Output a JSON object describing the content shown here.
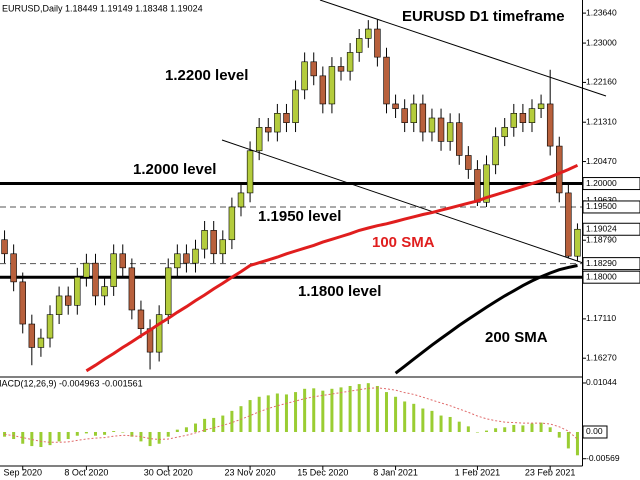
{
  "chart_data": [
    {
      "type": "candlestick",
      "title": "EURUSD D1 timeframe",
      "header": "EURUSD,Daily  1.18449 1.19149 1.18348 1.19024",
      "categories": [
        null,
        null,
        "Sep 2020",
        null,
        null,
        null,
        null,
        null,
        null,
        "8 Oct 2020",
        null,
        null,
        null,
        null,
        null,
        null,
        null,
        null,
        "30 Oct 2020",
        null,
        null,
        null,
        null,
        null,
        null,
        null,
        null,
        "23 Nov 2020",
        null,
        null,
        null,
        null,
        null,
        null,
        null,
        "15 Dec 2020",
        null,
        null,
        null,
        null,
        null,
        null,
        null,
        "8 Jan 2021",
        null,
        null,
        null,
        null,
        null,
        null,
        null,
        null,
        "1 Feb 2021",
        null,
        null,
        null,
        null,
        null,
        null,
        null,
        "23 Feb 2021",
        null,
        null,
        null
      ],
      "open": [
        1.188,
        1.185,
        1.179,
        1.17,
        1.165,
        1.167,
        1.172,
        1.176,
        1.174,
        1.18,
        1.183,
        1.176,
        1.178,
        1.185,
        1.182,
        1.173,
        1.169,
        1.164,
        1.172,
        1.182,
        1.185,
        1.183,
        1.186,
        1.19,
        1.185,
        1.188,
        1.195,
        1.198,
        1.207,
        1.212,
        1.211,
        1.215,
        1.213,
        1.22,
        1.226,
        1.223,
        1.217,
        1.225,
        1.224,
        1.228,
        1.231,
        1.233,
        1.227,
        1.217,
        1.216,
        1.213,
        1.217,
        1.211,
        1.214,
        1.209,
        1.213,
        1.206,
        1.203,
        1.196,
        1.204,
        1.21,
        1.212,
        1.215,
        1.213,
        1.216,
        1.217,
        1.208,
        1.198,
        1.18449
      ],
      "high": [
        1.19,
        1.187,
        1.181,
        1.172,
        1.169,
        1.174,
        1.178,
        1.178,
        1.182,
        1.185,
        1.185,
        1.18,
        1.187,
        1.187,
        1.184,
        1.175,
        1.171,
        1.174,
        1.184,
        1.187,
        1.187,
        1.188,
        1.192,
        1.192,
        1.19,
        1.197,
        1.2,
        1.209,
        1.214,
        1.214,
        1.217,
        1.217,
        1.222,
        1.228,
        1.228,
        1.225,
        1.227,
        1.227,
        1.23,
        1.233,
        1.2349,
        1.235,
        1.229,
        1.219,
        1.218,
        1.219,
        1.219,
        1.216,
        1.216,
        1.215,
        1.215,
        1.208,
        1.205,
        1.206,
        1.212,
        1.214,
        1.217,
        1.217,
        1.218,
        1.219,
        1.2243,
        1.21,
        1.2,
        1.19149
      ],
      "low": [
        1.183,
        1.177,
        1.168,
        1.1612,
        1.163,
        1.165,
        1.17,
        1.172,
        1.172,
        1.178,
        1.174,
        1.174,
        1.176,
        1.18,
        1.171,
        1.167,
        1.1603,
        1.162,
        1.17,
        1.18,
        1.181,
        1.181,
        1.184,
        1.183,
        1.183,
        1.186,
        1.193,
        1.196,
        1.205,
        1.209,
        1.209,
        1.211,
        1.211,
        1.218,
        1.221,
        1.215,
        1.215,
        1.222,
        1.222,
        1.226,
        1.229,
        1.225,
        1.215,
        1.214,
        1.211,
        1.211,
        1.209,
        1.209,
        1.207,
        1.207,
        1.204,
        1.201,
        1.1952,
        1.195,
        1.202,
        1.208,
        1.21,
        1.211,
        1.211,
        1.214,
        1.206,
        1.196,
        1.184,
        1.18348
      ],
      "close": [
        1.185,
        1.179,
        1.17,
        1.165,
        1.167,
        1.172,
        1.176,
        1.174,
        1.18,
        1.183,
        1.176,
        1.178,
        1.185,
        1.182,
        1.173,
        1.169,
        1.164,
        1.172,
        1.182,
        1.185,
        1.183,
        1.186,
        1.19,
        1.185,
        1.188,
        1.195,
        1.198,
        1.207,
        1.212,
        1.211,
        1.215,
        1.213,
        1.22,
        1.226,
        1.223,
        1.217,
        1.225,
        1.224,
        1.228,
        1.231,
        1.233,
        1.227,
        1.217,
        1.216,
        1.213,
        1.217,
        1.211,
        1.214,
        1.209,
        1.213,
        1.206,
        1.203,
        1.196,
        1.204,
        1.21,
        1.212,
        1.215,
        1.213,
        1.216,
        1.217,
        1.208,
        1.198,
        1.1845,
        1.19024
      ],
      "up_color": "#b4cc3c",
      "down_color": "#b8603c",
      "series": [
        {
          "name": "100 SMA",
          "color": "#e01e1e",
          "values": [
            null,
            null,
            null,
            null,
            null,
            null,
            null,
            null,
            null,
            1.16,
            1.1612,
            1.1625,
            1.1637,
            1.165,
            1.1662,
            1.1675,
            1.1687,
            1.17,
            1.1712,
            1.1725,
            1.1737,
            1.175,
            1.1762,
            1.1775,
            1.1787,
            1.18,
            1.1812,
            1.1825,
            1.1831,
            1.1837,
            1.1843,
            1.185,
            1.1856,
            1.1862,
            1.1868,
            1.1875,
            1.1881,
            1.1887,
            1.1893,
            1.19,
            1.1905,
            1.191,
            1.1914,
            1.1919,
            1.1924,
            1.1929,
            1.1934,
            1.1938,
            1.1943,
            1.1948,
            1.1953,
            1.1958,
            1.1963,
            1.197,
            1.1976,
            1.1982,
            1.1988,
            1.1994,
            1.2,
            1.2006,
            1.2014,
            1.2022,
            1.203,
            1.2039
          ]
        },
        {
          "name": "200 SMA",
          "color": "#000000",
          "values": [
            null,
            null,
            null,
            null,
            null,
            null,
            null,
            null,
            null,
            null,
            null,
            null,
            null,
            null,
            null,
            null,
            null,
            null,
            null,
            null,
            null,
            null,
            null,
            null,
            null,
            null,
            null,
            null,
            null,
            null,
            null,
            null,
            null,
            null,
            null,
            null,
            null,
            null,
            null,
            null,
            null,
            null,
            null,
            1.1595,
            1.161,
            1.1625,
            1.164,
            1.1655,
            1.1669,
            1.1683,
            1.1697,
            1.171,
            1.1723,
            1.1736,
            1.1748,
            1.176,
            1.1771,
            1.1782,
            1.1792,
            1.1801,
            1.1809,
            1.1816,
            1.1821,
            1.1825
          ]
        }
      ],
      "ylim": [
        1.1589,
        1.2392
      ],
      "yticks": [
        {
          "value": 1.2364,
          "label": "1.23640"
        },
        {
          "value": 1.23,
          "label": "1.23000"
        },
        {
          "value": 1.2216,
          "label": "1.22160"
        },
        {
          "value": 1.2131,
          "label": "1.21310"
        },
        {
          "value": 1.2047,
          "label": "1.20470"
        },
        {
          "value": 1.1963,
          "label": "1.19630"
        },
        {
          "value": 1.1879,
          "label": "1.18790"
        },
        {
          "value": 1.1711,
          "label": "1.17110"
        },
        {
          "value": 1.1627,
          "label": "1.16270"
        }
      ],
      "levels": [
        {
          "value": 1.2,
          "label": "1.20000",
          "style": "solid"
        },
        {
          "value": 1.195,
          "label": "1.19500",
          "style": "dashed"
        },
        {
          "value": 1.1829,
          "label": "1.18290",
          "style": "dashed"
        },
        {
          "value": 1.18,
          "label": "1.18000",
          "style": "solid"
        }
      ],
      "current_price": {
        "value": 1.19024,
        "label": "1.19024"
      },
      "annotations": [
        "1.2200 level",
        "1.2000 level",
        "1.1950 level",
        "1.1800 level"
      ]
    },
    {
      "type": "macd",
      "title": "MACD(12,26,9) -0.004963 -0.001561",
      "color": "#9acd32",
      "signal_color": "#e06a6a",
      "values": [
        -0.001,
        -0.0015,
        -0.0025,
        -0.003,
        -0.0032,
        -0.0028,
        -0.002,
        -0.0015,
        -0.0008,
        -0.0003,
        -0.0008,
        -0.0006,
        0.0002,
        0.0,
        -0.001,
        -0.002,
        -0.003,
        -0.0025,
        -0.001,
        0.0005,
        0.001,
        0.0018,
        0.0028,
        0.003,
        0.0035,
        0.0045,
        0.0055,
        0.0068,
        0.0075,
        0.0078,
        0.0082,
        0.008,
        0.0085,
        0.0092,
        0.0093,
        0.0088,
        0.0092,
        0.0095,
        0.0098,
        0.0102,
        0.0104,
        0.0098,
        0.0085,
        0.0075,
        0.0065,
        0.006,
        0.005,
        0.0045,
        0.0035,
        0.0032,
        0.0022,
        0.0012,
        0.0,
        0.0003,
        0.0008,
        0.001,
        0.0015,
        0.0014,
        0.0018,
        0.002,
        0.001,
        -0.0012,
        -0.0035,
        -0.004963
      ],
      "signal": [
        -0.0005,
        -0.0008,
        -0.0012,
        -0.0016,
        -0.002,
        -0.0022,
        -0.0022,
        -0.0021,
        -0.0018,
        -0.0015,
        -0.0013,
        -0.0012,
        -0.0009,
        -0.0007,
        -0.0008,
        -0.001,
        -0.0014,
        -0.0016,
        -0.0015,
        -0.0011,
        -0.0007,
        -0.0002,
        0.0004,
        0.0009,
        0.0014,
        0.002,
        0.0027,
        0.0035,
        0.0043,
        0.005,
        0.0056,
        0.0061,
        0.0066,
        0.0071,
        0.0075,
        0.0078,
        0.0081,
        0.0084,
        0.0087,
        0.009,
        0.0093,
        0.0094,
        0.0092,
        0.0089,
        0.0084,
        0.008,
        0.0074,
        0.0068,
        0.0062,
        0.0056,
        0.0049,
        0.0042,
        0.0034,
        0.0028,
        0.0024,
        0.0021,
        0.002,
        0.0019,
        0.0019,
        0.0019,
        0.0017,
        0.0011,
        0.0002,
        -0.001561
      ],
      "ylim": [
        -0.00703,
        0.0115
      ],
      "yticks": [
        {
          "value": 0.01044,
          "label": "0.01044"
        },
        {
          "value": 0,
          "label": "0.00"
        },
        {
          "value": -0.00569,
          "label": "-0.00569"
        }
      ]
    }
  ]
}
